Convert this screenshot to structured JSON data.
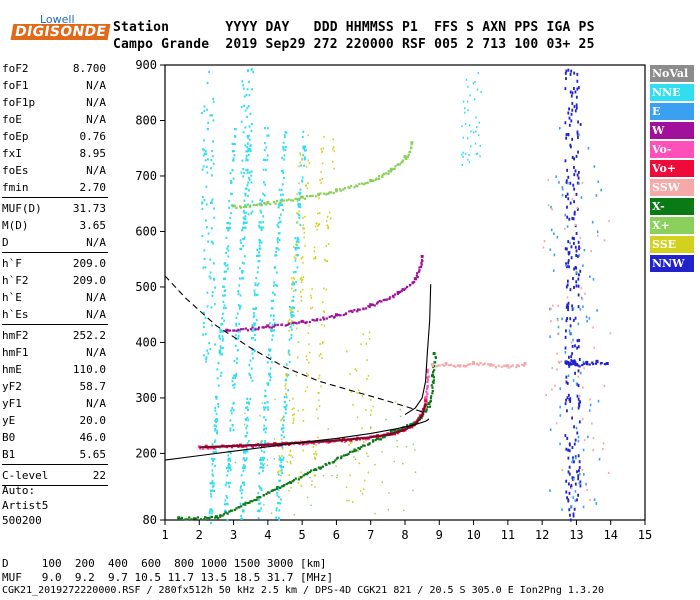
{
  "header": {
    "logo_top": "Lowell",
    "logo_main": "DIGISONDE",
    "label_row": "Station       YYYY DAY   DDD HHMMSS P1  FFS S AXN PPS IGA PS",
    "value_row": "Campo Grande  2019 Sep29 272 220000 RSF 005 2 713 100 03+ 25"
  },
  "parameters": [
    [
      {
        "name": "foF2",
        "value": "8.700"
      },
      {
        "name": "foF1",
        "value": "N/A"
      },
      {
        "name": "foF1p",
        "value": "N/A"
      },
      {
        "name": "foE",
        "value": "N/A"
      },
      {
        "name": "foEp",
        "value": "0.76"
      },
      {
        "name": "fxI",
        "value": "8.95"
      },
      {
        "name": "foEs",
        "value": "N/A"
      },
      {
        "name": "fmin",
        "value": "2.70"
      }
    ],
    [
      {
        "name": "MUF(D)",
        "value": "31.73"
      },
      {
        "name": "M(D)",
        "value": "3.65"
      },
      {
        "name": "D",
        "value": "N/A"
      }
    ],
    [
      {
        "name": "h`F",
        "value": "209.0"
      },
      {
        "name": "h`F2",
        "value": "209.0"
      },
      {
        "name": "h`E",
        "value": "N/A"
      },
      {
        "name": "h`Es",
        "value": "N/A"
      }
    ],
    [
      {
        "name": "hmF2",
        "value": "252.2"
      },
      {
        "name": "hmF1",
        "value": "N/A"
      },
      {
        "name": "hmE",
        "value": "110.0"
      },
      {
        "name": "yF2",
        "value": "58.7"
      },
      {
        "name": "yF1",
        "value": "N/A"
      },
      {
        "name": "yE",
        "value": "20.0"
      },
      {
        "name": "B0",
        "value": "46.0"
      },
      {
        "name": "B1",
        "value": "5.65"
      }
    ],
    [
      {
        "name": "C-level",
        "value": "22"
      }
    ]
  ],
  "auto_note": [
    "Auto:",
    "Artist5",
    "500200"
  ],
  "footer": {
    "d_row": "D     100  200  400  600  800 1000 1500 3000 [km]",
    "muf_row": "MUF   9.0  9.2  9.7 10.5 11.7 13.5 18.5 31.7 [MHz]",
    "file_row": "CGK21_2019272220000.RSF / 280fx512h 50 kHz 2.5 km / DPS-4D CGK21 821 / 20.5 S 305.0 E Ion2Png 1.3.20"
  },
  "legend": [
    {
      "label": "NoVal",
      "color": "#8c8c8c"
    },
    {
      "label": "NNE",
      "color": "#33ddf0"
    },
    {
      "label": "E",
      "color": "#3aa0ef"
    },
    {
      "label": "W",
      "color": "#a0109a"
    },
    {
      "label": "Vo-",
      "color": "#ff4fb8"
    },
    {
      "label": "Vo+",
      "color": "#ef0a3a"
    },
    {
      "label": "SSW",
      "color": "#f5a9a9"
    },
    {
      "label": "X-",
      "color": "#0a7a14"
    },
    {
      "label": "X+",
      "color": "#8ad05a"
    },
    {
      "label": "SSE",
      "color": "#d2d21e"
    },
    {
      "label": "NNW",
      "color": "#2222cc"
    }
  ],
  "chart_data": {
    "type": "scatter",
    "title": "",
    "xlabel": "",
    "ylabel": "",
    "xlim": [
      1,
      15
    ],
    "ylim": [
      80,
      900
    ],
    "x_ticks": [
      1,
      2,
      3,
      4,
      5,
      6,
      7,
      8,
      9,
      10,
      11,
      12,
      13,
      14,
      15
    ],
    "y_ticks": [
      80,
      200,
      300,
      400,
      500,
      600,
      700,
      800,
      900
    ],
    "grid": false,
    "legend_position": "right",
    "series": [
      {
        "name": "Vo-",
        "color": "#ff4fb8",
        "points": [
          [
            2.0,
            212
          ],
          [
            3.0,
            214
          ],
          [
            4.0,
            217
          ],
          [
            5.0,
            220
          ],
          [
            6.0,
            224
          ],
          [
            7.0,
            230
          ],
          [
            7.5,
            236
          ],
          [
            8.0,
            245
          ],
          [
            8.3,
            256
          ],
          [
            8.5,
            275
          ],
          [
            8.6,
            300
          ],
          [
            8.65,
            350
          ]
        ]
      },
      {
        "name": "Vo+",
        "color": "#ef0a3a",
        "points": [
          [
            2.2,
            213
          ],
          [
            3.2,
            215
          ],
          [
            4.2,
            218
          ],
          [
            5.2,
            221
          ],
          [
            6.2,
            226
          ],
          [
            7.2,
            232
          ],
          [
            7.8,
            240
          ],
          [
            8.2,
            252
          ],
          [
            8.45,
            268
          ],
          [
            8.6,
            295
          ]
        ]
      },
      {
        "name": "W",
        "color": "#a0109a",
        "points": [
          [
            2.8,
            422
          ],
          [
            4.0,
            430
          ],
          [
            5.0,
            438
          ],
          [
            6.0,
            450
          ],
          [
            7.0,
            468
          ],
          [
            7.8,
            490
          ],
          [
            8.3,
            515
          ],
          [
            8.5,
            555
          ]
        ]
      },
      {
        "name": "X-",
        "color": "#0a7a14",
        "points": [
          [
            1.4,
            84
          ],
          [
            2.5,
            86
          ],
          [
            7.6,
            240
          ],
          [
            8.4,
            262
          ],
          [
            8.7,
            290
          ],
          [
            8.8,
            340
          ],
          [
            8.85,
            380
          ]
        ]
      },
      {
        "name": "X+",
        "color": "#8ad05a",
        "points": [
          [
            3.0,
            646
          ],
          [
            4.0,
            652
          ],
          [
            5.0,
            662
          ],
          [
            6.0,
            675
          ],
          [
            7.0,
            692
          ],
          [
            7.6,
            712
          ],
          [
            8.0,
            735
          ],
          [
            8.2,
            760
          ]
        ]
      },
      {
        "name": "SSW",
        "color": "#f5a9a9",
        "points": [
          [
            8.8,
            360
          ],
          [
            9.2,
            362
          ],
          [
            9.6,
            358
          ],
          [
            10.0,
            364
          ],
          [
            10.5,
            360
          ],
          [
            11.0,
            358
          ],
          [
            11.5,
            362
          ]
        ]
      },
      {
        "name": "NNW",
        "color": "#2222cc",
        "points": [
          [
            12.7,
            365
          ],
          [
            12.8,
            362
          ],
          [
            12.9,
            366
          ],
          [
            13.0,
            360
          ],
          [
            13.3,
            364
          ],
          [
            13.6,
            366
          ],
          [
            13.9,
            362
          ]
        ]
      }
    ]
  }
}
